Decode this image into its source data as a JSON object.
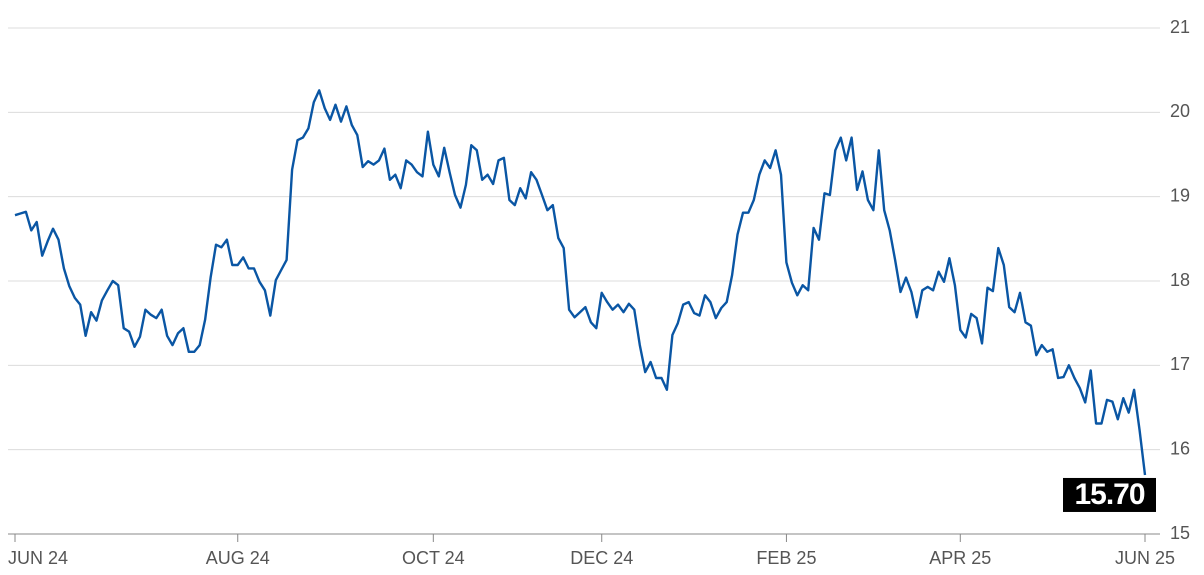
{
  "chart_data": {
    "type": "line",
    "color": "#0a56a4",
    "categories": [
      "JUN 24",
      null,
      null,
      null,
      null,
      null,
      null,
      null,
      null,
      null,
      null,
      null,
      null,
      null,
      null,
      null,
      null,
      null,
      null,
      null,
      null,
      null,
      null,
      null,
      null,
      null,
      null,
      null,
      null,
      null,
      null,
      null,
      null,
      null,
      null,
      null,
      null,
      null,
      null,
      null,
      null,
      "AUG 24",
      null,
      null,
      null,
      null,
      null,
      null,
      null,
      null,
      null,
      null,
      null,
      null,
      null,
      null,
      null,
      null,
      null,
      null,
      null,
      null,
      null,
      null,
      null,
      null,
      null,
      null,
      null,
      null,
      null,
      null,
      null,
      null,
      null,
      null,
      null,
      "OCT 24",
      null,
      null,
      null,
      null,
      null,
      null,
      null,
      null,
      null,
      null,
      null,
      null,
      null,
      null,
      null,
      null,
      null,
      null,
      null,
      null,
      null,
      null,
      null,
      null,
      null,
      null,
      null,
      null,
      null,
      null,
      "DEC 24",
      null,
      null,
      null,
      null,
      null,
      null,
      null,
      null,
      null,
      null,
      null,
      null,
      null,
      null,
      null,
      null,
      null,
      null,
      null,
      null,
      null,
      null,
      null,
      null,
      null,
      null,
      null,
      null,
      null,
      null,
      null,
      null,
      null,
      "FEB 25",
      null,
      null,
      null,
      null,
      null,
      null,
      null,
      null,
      null,
      null,
      null,
      null,
      null,
      null,
      null,
      null,
      null,
      null,
      null,
      null,
      null,
      null,
      null,
      null,
      null,
      null,
      null,
      null,
      null,
      null,
      null,
      "APR 25",
      null,
      null,
      null,
      null,
      null,
      null,
      null,
      null,
      null,
      null,
      null,
      null,
      null,
      null,
      null,
      null,
      null,
      null,
      null,
      null,
      null,
      null,
      null,
      null,
      null,
      null,
      null,
      null,
      null,
      null,
      null,
      null,
      null,
      "JUN 25"
    ],
    "values": [
      18.78,
      18.8,
      18.82,
      18.6,
      18.7,
      18.3,
      18.47,
      18.62,
      18.49,
      18.15,
      17.94,
      17.8,
      17.72,
      17.35,
      17.63,
      17.53,
      17.77,
      17.89,
      18.0,
      17.95,
      17.44,
      17.4,
      17.22,
      17.34,
      17.66,
      17.6,
      17.56,
      17.66,
      17.35,
      17.24,
      17.38,
      17.44,
      17.16,
      17.16,
      17.24,
      17.54,
      18.04,
      18.43,
      18.4,
      18.49,
      18.19,
      18.19,
      18.28,
      18.15,
      18.15,
      17.99,
      17.89,
      17.59,
      18.01,
      18.13,
      18.25,
      19.32,
      19.67,
      19.7,
      19.81,
      20.12,
      20.26,
      20.05,
      19.91,
      20.09,
      19.89,
      20.07,
      19.85,
      19.73,
      19.35,
      19.42,
      19.38,
      19.43,
      19.57,
      19.2,
      19.26,
      19.1,
      19.43,
      19.38,
      19.29,
      19.24,
      19.77,
      19.38,
      19.24,
      19.58,
      19.29,
      19.02,
      18.87,
      19.14,
      19.61,
      19.55,
      19.2,
      19.26,
      19.15,
      19.43,
      19.46,
      18.96,
      18.9,
      19.1,
      18.98,
      19.29,
      19.2,
      19.02,
      18.84,
      18.9,
      18.51,
      18.39,
      17.66,
      17.57,
      17.63,
      17.69,
      17.51,
      17.44,
      17.86,
      17.75,
      17.66,
      17.72,
      17.63,
      17.73,
      17.66,
      17.24,
      16.92,
      17.04,
      16.85,
      16.85,
      16.71,
      17.36,
      17.5,
      17.72,
      17.75,
      17.62,
      17.59,
      17.83,
      17.75,
      17.56,
      17.68,
      17.75,
      18.07,
      18.55,
      18.81,
      18.81,
      18.96,
      19.26,
      19.43,
      19.34,
      19.55,
      19.26,
      18.22,
      17.98,
      17.83,
      17.95,
      17.89,
      18.63,
      18.49,
      19.04,
      19.02,
      19.55,
      19.7,
      19.43,
      19.7,
      19.08,
      19.3,
      18.96,
      18.84,
      19.55,
      18.84,
      18.6,
      18.25,
      17.87,
      18.04,
      17.87,
      17.57,
      17.89,
      17.93,
      17.89,
      18.11,
      17.99,
      18.27,
      17.95,
      17.42,
      17.33,
      17.61,
      17.56,
      17.26,
      17.92,
      17.88,
      18.39,
      18.19,
      17.69,
      17.63,
      17.86,
      17.51,
      17.47,
      17.12,
      17.24,
      17.16,
      17.19,
      16.85,
      16.86,
      17.0,
      16.85,
      16.73,
      16.56,
      16.94,
      16.31,
      16.31,
      16.59,
      16.57,
      16.36,
      16.61,
      16.44,
      16.71,
      16.23,
      15.7
    ],
    "value_labels": [
      null,
      null,
      null,
      null,
      null,
      null,
      null,
      null,
      null,
      null,
      null,
      null,
      null,
      null,
      null,
      null,
      null,
      null,
      null,
      null,
      null,
      null,
      null,
      null,
      null,
      null,
      null,
      null,
      null,
      null,
      null,
      null,
      null,
      null,
      null,
      null,
      null,
      null,
      null,
      null,
      null,
      null,
      null,
      null,
      null,
      null,
      null,
      null,
      null,
      null,
      null,
      null,
      null,
      null,
      null,
      null,
      null,
      null,
      null,
      null,
      null,
      null,
      null,
      null,
      null,
      null,
      null,
      null,
      null,
      null,
      null,
      null,
      null,
      null,
      null,
      null,
      null,
      null,
      null,
      null,
      null,
      null,
      null,
      null,
      null,
      null,
      null,
      null,
      null,
      null,
      null,
      null,
      null,
      null,
      null,
      null,
      null,
      null,
      null,
      null,
      null,
      null,
      null,
      null,
      null,
      null,
      null,
      null,
      null,
      null,
      null,
      null,
      null,
      null,
      null,
      null,
      null,
      null,
      null,
      null,
      null,
      null,
      null,
      null,
      null,
      null,
      null,
      null,
      null,
      null,
      null,
      null,
      null,
      null,
      null,
      null,
      null,
      null,
      null,
      null,
      null,
      null,
      null,
      null,
      null,
      null,
      null,
      null,
      null,
      null,
      null,
      null,
      null,
      null,
      null,
      null,
      null,
      null,
      null,
      null,
      null,
      null,
      null,
      null,
      null,
      null,
      null,
      null,
      null,
      null,
      null,
      null,
      null,
      null,
      null,
      null,
      null,
      null,
      null,
      null,
      null,
      null,
      null,
      null,
      null,
      null,
      null,
      null,
      null,
      null,
      null,
      null,
      null,
      null,
      null,
      null,
      null,
      null,
      null,
      null,
      null,
      null,
      null,
      null,
      null,
      null,
      null,
      null,
      "15.70"
    ],
    "ylim": [
      15,
      21
    ],
    "yticks": [
      15,
      16,
      17,
      18,
      19,
      20,
      21
    ],
    "grid": true
  }
}
